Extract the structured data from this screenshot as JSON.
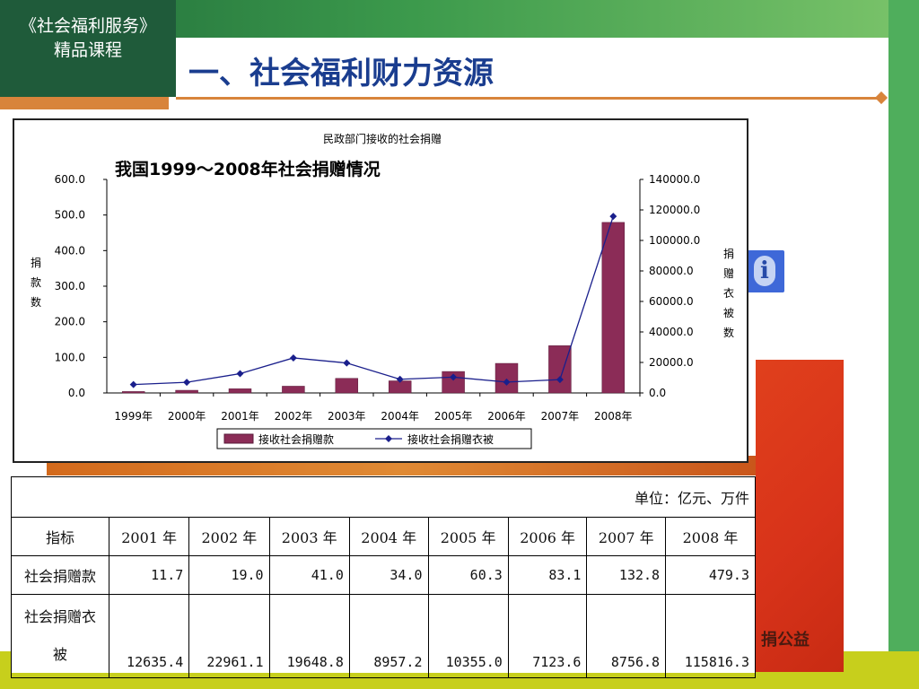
{
  "slide": {
    "course_line1": "《社会福利服务》",
    "course_line2": "精品课程",
    "title": "一、社会福利财力资源",
    "bg_text": "捐公益"
  },
  "chart_data": {
    "type": "bar+line",
    "title": "民政部门接收的社会捐赠",
    "subtitle": "我国1999～2008年社会捐赠情况",
    "categories": [
      "1999年",
      "2000年",
      "2001年",
      "2002年",
      "2003年",
      "2004年",
      "2005年",
      "2006年",
      "2007年",
      "2008年"
    ],
    "series": [
      {
        "name": "接收社会捐赠款",
        "kind": "bar",
        "axis": "left",
        "values": [
          4.0,
          7.5,
          11.7,
          19.0,
          41.0,
          34.0,
          60.3,
          83.1,
          132.8,
          479.3
        ]
      },
      {
        "name": "接收社会捐赠衣被",
        "kind": "line",
        "axis": "right",
        "values": [
          5500,
          7000,
          12635.4,
          22961.1,
          19648.8,
          8957.2,
          10355.0,
          7123.6,
          8756.8,
          115816.3
        ]
      }
    ],
    "ylabel_left": "捐款数",
    "ylabel_right": "捐赠衣被数",
    "ylim_left": [
      0,
      600
    ],
    "ylim_right": [
      0,
      140000
    ],
    "yticks_left": [
      "600.0",
      "500.0",
      "400.0",
      "300.0",
      "200.0",
      "100.0",
      "0.0"
    ],
    "yticks_right": [
      "140000.0",
      "120000.0",
      "100000.0",
      "80000.0",
      "60000.0",
      "40000.0",
      "20000.0",
      "0.0"
    ],
    "legend_position": "bottom",
    "colors": {
      "bar": "#8b2c57",
      "line": "#1a1f8c"
    }
  },
  "table": {
    "unit": "单位：亿元、万件",
    "headers": [
      "指标",
      "2001 年",
      "2002 年",
      "2003 年",
      "2004 年",
      "2005 年",
      "2006 年",
      "2007 年",
      "2008 年"
    ],
    "rows": [
      {
        "label": "社会捐赠款",
        "values": [
          "11.7",
          "19.0",
          "41.0",
          "34.0",
          "60.3",
          "83.1",
          "132.8",
          "479.3"
        ]
      },
      {
        "label_line1": "社会捐赠衣",
        "label_line2": "被",
        "values": [
          "12635.4",
          "22961.1",
          "19648.8",
          "8957.2",
          "10355.0",
          "7123.6",
          "8756.8",
          "115816.3"
        ]
      }
    ]
  }
}
